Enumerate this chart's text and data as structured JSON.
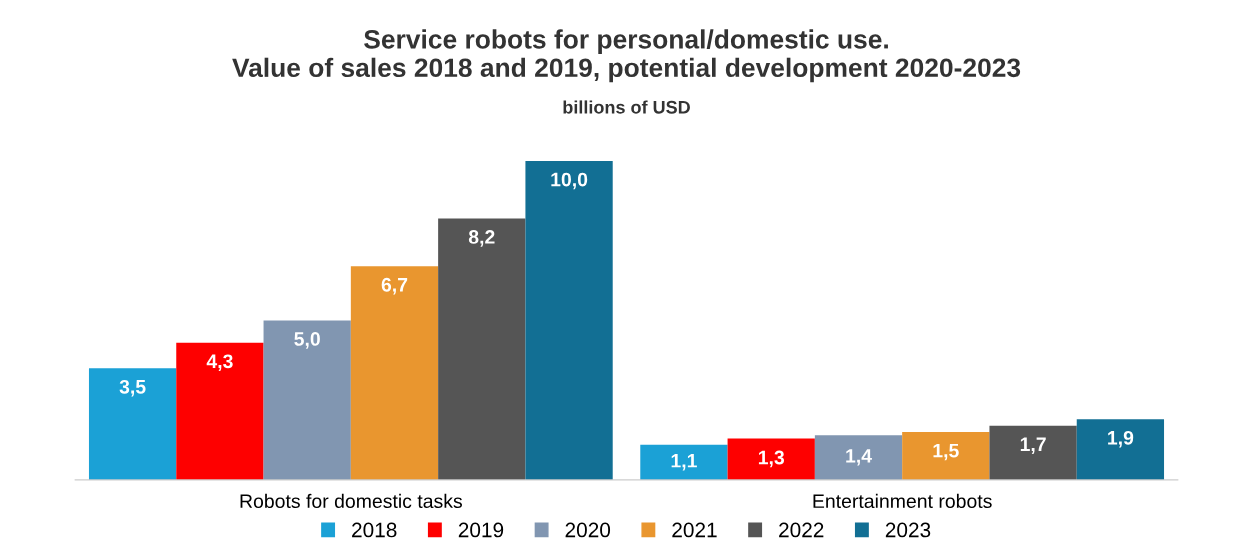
{
  "chart_data": {
    "type": "bar",
    "title": "Service robots for personal/domestic use.\nValue of sales 2018 and 2019, potential development 2020-2023",
    "subtitle": "billions of USD",
    "categories": [
      "Robots for domestic tasks",
      "Entertainment robots"
    ],
    "series": [
      {
        "name": "2018",
        "color": "#1ba1d6",
        "values": [
          3.5,
          1.1
        ],
        "value_labels": [
          "3,5",
          "1,1"
        ]
      },
      {
        "name": "2019",
        "color": "#fe0000",
        "values": [
          4.3,
          1.3
        ],
        "value_labels": [
          "4,3",
          "1,3"
        ]
      },
      {
        "name": "2020",
        "color": "#8196b1",
        "values": [
          5.0,
          1.4
        ],
        "value_labels": [
          "5,0",
          "1,4"
        ]
      },
      {
        "name": "2021",
        "color": "#e9962f",
        "values": [
          6.7,
          1.5
        ],
        "value_labels": [
          "6,7",
          "1,5"
        ]
      },
      {
        "name": "2022",
        "color": "#555555",
        "values": [
          8.2,
          1.7
        ],
        "value_labels": [
          "8,2",
          "1,7"
        ]
      },
      {
        "name": "2023",
        "color": "#126f94",
        "values": [
          10.0,
          1.9
        ],
        "value_labels": [
          "10,0",
          "1,9"
        ]
      }
    ],
    "legend": "bottom",
    "grid": false
  }
}
